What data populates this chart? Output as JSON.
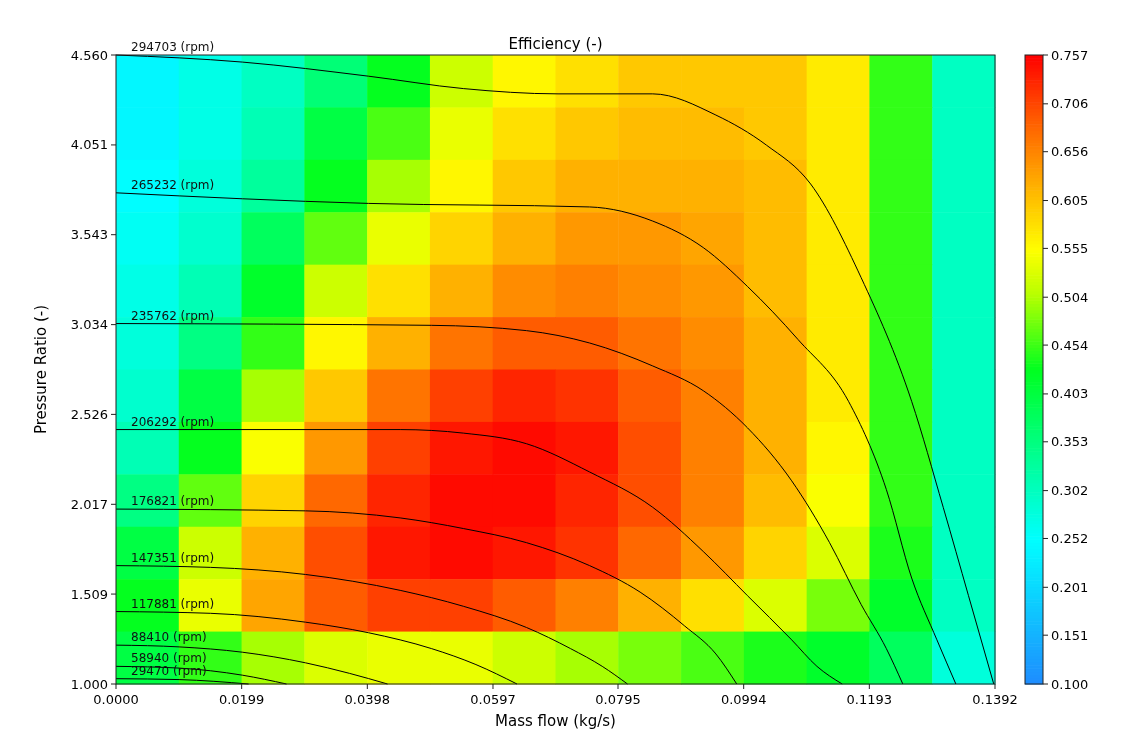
{
  "chart_data": {
    "type": "heatmap",
    "title": "Efficiency (-)",
    "xlabel": "Mass flow (kg/s)",
    "ylabel": "Pressure Ratio (-)",
    "xlim": [
      0,
      0.1392
    ],
    "ylim": [
      1.0,
      4.56
    ],
    "xticks": [
      {
        "value": 0,
        "label": "0.0000"
      },
      0.0199,
      0.0398,
      0.0597,
      0.0795,
      0.0994,
      0.1193,
      0.1392
    ],
    "yticks": [
      {
        "value": 1.0,
        "label": "1.000"
      },
      1.509,
      2.017,
      2.526,
      3.034,
      3.543,
      4.051,
      {
        "value": 4.56,
        "label": "4.560"
      }
    ],
    "clim": [
      0.1,
      0.757
    ],
    "cticks": [
      {
        "value": 0.1,
        "label": "0.100"
      },
      0.151,
      0.201,
      0.252,
      0.302,
      0.353,
      0.403,
      0.454,
      0.504,
      0.555,
      0.605,
      0.656,
      0.706,
      0.757
    ],
    "cells": [
      [
        0.24,
        0.27,
        0.3,
        0.36,
        0.43,
        0.52,
        0.56,
        0.58,
        0.6,
        0.6,
        0.6,
        0.57,
        0.45,
        0.3
      ],
      [
        0.24,
        0.27,
        0.31,
        0.4,
        0.46,
        0.54,
        0.58,
        0.6,
        0.61,
        0.61,
        0.6,
        0.57,
        0.45,
        0.3
      ],
      [
        0.25,
        0.28,
        0.33,
        0.43,
        0.5,
        0.56,
        0.6,
        0.62,
        0.62,
        0.62,
        0.61,
        0.57,
        0.45,
        0.3
      ],
      [
        0.26,
        0.29,
        0.38,
        0.47,
        0.54,
        0.59,
        0.62,
        0.64,
        0.64,
        0.63,
        0.61,
        0.57,
        0.45,
        0.3
      ],
      [
        0.27,
        0.31,
        0.42,
        0.52,
        0.58,
        0.62,
        0.65,
        0.66,
        0.65,
        0.64,
        0.61,
        0.57,
        0.45,
        0.3
      ],
      [
        0.28,
        0.35,
        0.45,
        0.56,
        0.62,
        0.67,
        0.69,
        0.69,
        0.67,
        0.65,
        0.62,
        0.57,
        0.45,
        0.3
      ],
      [
        0.29,
        0.4,
        0.5,
        0.6,
        0.67,
        0.71,
        0.73,
        0.72,
        0.69,
        0.66,
        0.62,
        0.57,
        0.45,
        0.3
      ],
      [
        0.31,
        0.43,
        0.55,
        0.64,
        0.71,
        0.74,
        0.75,
        0.74,
        0.7,
        0.66,
        0.62,
        0.56,
        0.45,
        0.3
      ],
      [
        0.35,
        0.47,
        0.59,
        0.68,
        0.73,
        0.75,
        0.75,
        0.73,
        0.7,
        0.66,
        0.61,
        0.55,
        0.45,
        0.3
      ],
      [
        0.4,
        0.52,
        0.62,
        0.7,
        0.74,
        0.75,
        0.74,
        0.72,
        0.68,
        0.64,
        0.59,
        0.53,
        0.44,
        0.3
      ],
      [
        0.43,
        0.54,
        0.63,
        0.69,
        0.71,
        0.71,
        0.69,
        0.66,
        0.62,
        0.58,
        0.53,
        0.48,
        0.42,
        0.3
      ],
      [
        0.4,
        0.45,
        0.5,
        0.53,
        0.54,
        0.54,
        0.52,
        0.5,
        0.48,
        0.46,
        0.44,
        0.42,
        0.38,
        0.28
      ]
    ],
    "series": [
      {
        "type": "line",
        "name": "294703 (rpm)",
        "color": "#000000",
        "x": [
          0,
          0.02,
          0.04,
          0.055,
          0.07,
          0.085,
          0.095,
          0.103,
          0.11,
          0.118,
          0.126,
          0.131,
          0.135,
          0.139
        ],
        "values": [
          4.56,
          4.52,
          4.44,
          4.37,
          4.34,
          4.34,
          4.22,
          4.05,
          3.83,
          3.3,
          2.6,
          2.0,
          1.5,
          1.0
        ]
      },
      {
        "type": "line",
        "name": "265232 (rpm)",
        "color": "#000000",
        "x": [
          0,
          0.04,
          0.075,
          0.085,
          0.093,
          0.1,
          0.108,
          0.116,
          0.122,
          0.126,
          0.13,
          0.133
        ],
        "values": [
          3.78,
          3.72,
          3.7,
          3.62,
          3.47,
          3.25,
          2.95,
          2.6,
          2.1,
          1.6,
          1.25,
          1.0
        ]
      },
      {
        "type": "line",
        "name": "235762 (rpm)",
        "color": "#000000",
        "x": [
          0,
          0.05,
          0.065,
          0.075,
          0.085,
          0.093,
          0.1,
          0.107,
          0.113,
          0.118,
          0.122,
          0.1246
        ],
        "values": [
          3.04,
          3.03,
          3.0,
          2.93,
          2.8,
          2.66,
          2.45,
          2.15,
          1.8,
          1.45,
          1.2,
          1.0
        ]
      },
      {
        "type": "line",
        "name": "206292 (rpm)",
        "color": "#000000",
        "x": [
          0,
          0.045,
          0.055,
          0.065,
          0.075,
          0.085,
          0.093,
          0.1,
          0.107,
          0.111,
          0.115
        ],
        "values": [
          2.44,
          2.44,
          2.42,
          2.36,
          2.2,
          2.0,
          1.75,
          1.5,
          1.25,
          1.1,
          1.0
        ]
      },
      {
        "type": "line",
        "name": "176821 (rpm)",
        "color": "#000000",
        "x": [
          0,
          0.03,
          0.045,
          0.055,
          0.065,
          0.075,
          0.083,
          0.09,
          0.095,
          0.0983
        ],
        "values": [
          1.99,
          1.98,
          1.94,
          1.88,
          1.8,
          1.67,
          1.52,
          1.33,
          1.17,
          1.0
        ]
      },
      {
        "type": "line",
        "name": "147351 (rpm)",
        "color": "#000000",
        "x": [
          0,
          0.015,
          0.03,
          0.045,
          0.055,
          0.065,
          0.072,
          0.077,
          0.081
        ],
        "values": [
          1.67,
          1.66,
          1.62,
          1.53,
          1.44,
          1.32,
          1.2,
          1.1,
          1.0
        ]
      },
      {
        "type": "line",
        "name": "117881 (rpm)",
        "color": "#000000",
        "x": [
          0,
          0.015,
          0.03,
          0.04,
          0.05,
          0.057,
          0.0635
        ],
        "values": [
          1.41,
          1.4,
          1.35,
          1.29,
          1.2,
          1.11,
          1.0
        ]
      },
      {
        "type": "line",
        "name": "88410 (rpm)",
        "color": "#000000",
        "x": [
          0,
          0.01,
          0.02,
          0.03,
          0.037,
          0.043
        ],
        "values": [
          1.22,
          1.21,
          1.18,
          1.12,
          1.06,
          1.0
        ]
      },
      {
        "type": "line",
        "name": "58940 (rpm)",
        "color": "#000000",
        "x": [
          0,
          0.01,
          0.02,
          0.027
        ],
        "values": [
          1.1,
          1.09,
          1.05,
          1.0
        ]
      },
      {
        "type": "line",
        "name": "29470 (rpm)",
        "color": "#000000",
        "x": [
          0,
          0.01,
          0.021
        ],
        "values": [
          1.03,
          1.025,
          1.0
        ]
      }
    ]
  }
}
